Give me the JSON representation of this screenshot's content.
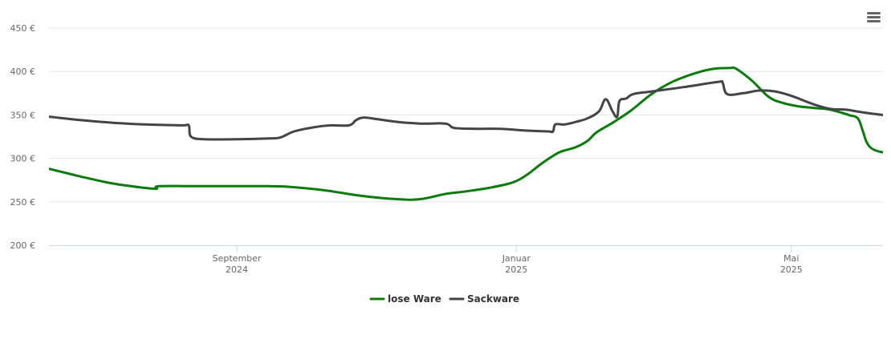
{
  "chart_data": {
    "type": "line",
    "title": "",
    "xlabel": "",
    "ylabel": "",
    "ylim": [
      200,
      450
    ],
    "yticks": [
      200,
      250,
      300,
      350,
      400,
      450
    ],
    "ytick_labels": [
      "200 €",
      "250 €",
      "300 €",
      "350 €",
      "400 €",
      "450 €"
    ],
    "xlim": [
      "2024-06-11",
      "2025-06-10"
    ],
    "xticks": [
      {
        "date": "2024-09-01",
        "line1": "September",
        "line2": "2024"
      },
      {
        "date": "2025-01-01",
        "line1": "Januar",
        "line2": "2025"
      },
      {
        "date": "2025-05-01",
        "line1": "Mai",
        "line2": "2025"
      }
    ],
    "grid": true,
    "legend_position": "bottom-center",
    "series": [
      {
        "name": "lose Ware",
        "color": "#0a7c0a",
        "points": [
          [
            "2024-06-11",
            288
          ],
          [
            "2024-06-25",
            279
          ],
          [
            "2024-07-09",
            271
          ],
          [
            "2024-07-23",
            266
          ],
          [
            "2024-07-28",
            265
          ],
          [
            "2024-07-29",
            268
          ],
          [
            "2024-08-15",
            268
          ],
          [
            "2024-09-15",
            268
          ],
          [
            "2024-09-25",
            267
          ],
          [
            "2024-10-10",
            263
          ],
          [
            "2024-10-25",
            257
          ],
          [
            "2024-11-10",
            253
          ],
          [
            "2024-11-20",
            253
          ],
          [
            "2024-12-01",
            259
          ],
          [
            "2024-12-10",
            262
          ],
          [
            "2024-12-20",
            266
          ],
          [
            "2024-12-30",
            272
          ],
          [
            "2025-01-05",
            280
          ],
          [
            "2025-01-12",
            294
          ],
          [
            "2025-01-19",
            306
          ],
          [
            "2025-01-22",
            309
          ],
          [
            "2025-01-27",
            313
          ],
          [
            "2025-02-01",
            320
          ],
          [
            "2025-02-05",
            330
          ],
          [
            "2025-02-12",
            341
          ],
          [
            "2025-02-20",
            355
          ],
          [
            "2025-03-01",
            374
          ],
          [
            "2025-03-10",
            388
          ],
          [
            "2025-03-20",
            398
          ],
          [
            "2025-03-28",
            403
          ],
          [
            "2025-04-04",
            404
          ],
          [
            "2025-04-07",
            403
          ],
          [
            "2025-04-14",
            389
          ],
          [
            "2025-04-21",
            371
          ],
          [
            "2025-04-27",
            364
          ],
          [
            "2025-05-04",
            360
          ],
          [
            "2025-05-11",
            358
          ],
          [
            "2025-05-18",
            356
          ],
          [
            "2025-05-26",
            350
          ],
          [
            "2025-05-30",
            346
          ],
          [
            "2025-06-01",
            333
          ],
          [
            "2025-06-03",
            318
          ],
          [
            "2025-06-06",
            310
          ],
          [
            "2025-06-12",
            306
          ],
          [
            "2025-06-20",
            304
          ],
          [
            "2025-06-23",
            301
          ],
          [
            "2025-06-25",
            292
          ]
        ]
      },
      {
        "name": "Sackware",
        "color": "#434348",
        "points": [
          [
            "2024-06-11",
            348
          ],
          [
            "2024-06-25",
            344
          ],
          [
            "2024-07-09",
            341
          ],
          [
            "2024-07-23",
            339
          ],
          [
            "2024-08-08",
            338
          ],
          [
            "2024-08-11",
            338
          ],
          [
            "2024-08-12",
            325
          ],
          [
            "2024-08-18",
            322
          ],
          [
            "2024-09-01",
            322
          ],
          [
            "2024-09-15",
            323
          ],
          [
            "2024-09-20",
            324
          ],
          [
            "2024-09-26",
            331
          ],
          [
            "2024-10-05",
            336
          ],
          [
            "2024-10-12",
            338
          ],
          [
            "2024-10-20",
            338
          ],
          [
            "2024-10-23",
            344
          ],
          [
            "2024-10-26",
            347
          ],
          [
            "2024-10-30",
            346
          ],
          [
            "2024-11-10",
            342
          ],
          [
            "2024-11-20",
            340
          ],
          [
            "2024-12-01",
            340
          ],
          [
            "2024-12-05",
            335
          ],
          [
            "2024-12-15",
            334
          ],
          [
            "2024-12-25",
            334
          ],
          [
            "2025-01-05",
            332
          ],
          [
            "2025-01-15",
            331
          ],
          [
            "2025-01-17",
            331
          ],
          [
            "2025-01-18",
            339
          ],
          [
            "2025-01-22",
            339
          ],
          [
            "2025-01-27",
            342
          ],
          [
            "2025-02-01",
            346
          ],
          [
            "2025-02-06",
            354
          ],
          [
            "2025-02-09",
            368
          ],
          [
            "2025-02-12",
            354
          ],
          [
            "2025-02-14",
            348
          ],
          [
            "2025-02-15",
            366
          ],
          [
            "2025-02-18",
            369
          ],
          [
            "2025-02-21",
            374
          ],
          [
            "2025-03-01",
            377
          ],
          [
            "2025-03-15",
            382
          ],
          [
            "2025-03-30",
            388
          ],
          [
            "2025-04-01",
            387
          ],
          [
            "2025-04-03",
            374
          ],
          [
            "2025-04-10",
            375
          ],
          [
            "2025-04-17",
            378
          ],
          [
            "2025-04-24",
            377
          ],
          [
            "2025-05-01",
            372
          ],
          [
            "2025-05-11",
            362
          ],
          [
            "2025-05-18",
            357
          ],
          [
            "2025-05-25",
            356
          ],
          [
            "2025-06-01",
            353
          ],
          [
            "2025-06-15",
            348
          ],
          [
            "2025-06-25",
            343
          ]
        ]
      }
    ]
  },
  "menu": {
    "icon": "hamburger-menu-icon"
  }
}
